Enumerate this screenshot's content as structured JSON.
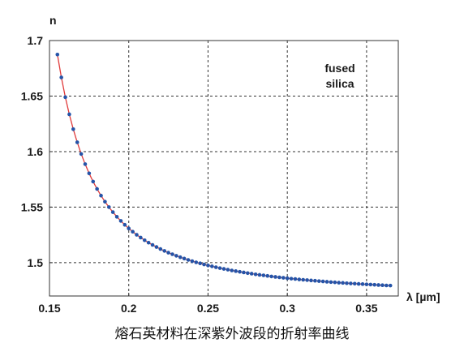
{
  "caption": "熔石英材料在深紫外波段的折射率曲线",
  "colors": {
    "curve": "#e03a3a",
    "points": "#2554a8",
    "grid": "#333333",
    "frame": "#333333"
  },
  "chart_data": {
    "type": "line",
    "title": "",
    "xlabel": "λ [µm]",
    "ylabel": "n",
    "xlim": [
      0.15,
      0.37
    ],
    "ylim": [
      1.47,
      1.7
    ],
    "xticks": [
      0.15,
      0.2,
      0.25,
      0.3,
      0.35
    ],
    "xtick_labels": [
      "0.15",
      "0.2",
      "0.25",
      "0.3",
      "0.35"
    ],
    "yticks": [
      1.5,
      1.55,
      1.6,
      1.65,
      1.7
    ],
    "ytick_labels": [
      "1.5",
      "1.55",
      "1.6",
      "1.65",
      "1.7"
    ],
    "grid": true,
    "annotation": [
      "fused",
      "silica"
    ],
    "series": [
      {
        "x": [
          0.155,
          0.1575,
          0.16,
          0.1625,
          0.165,
          0.1675,
          0.17,
          0.1725,
          0.175,
          0.1775,
          0.18,
          0.1825,
          0.185,
          0.1875,
          0.19,
          0.1925,
          0.195,
          0.1975,
          0.2,
          0.2025,
          0.205,
          0.2075,
          0.21,
          0.2125,
          0.215,
          0.2175,
          0.22,
          0.2225,
          0.225,
          0.2275,
          0.23,
          0.2325,
          0.235,
          0.2375,
          0.24,
          0.2425,
          0.245,
          0.2475,
          0.25,
          0.2525,
          0.255,
          0.2575,
          0.26,
          0.2625,
          0.265,
          0.2675,
          0.27,
          0.2725,
          0.275,
          0.2775,
          0.28,
          0.2825,
          0.285,
          0.2875,
          0.29,
          0.2925,
          0.295,
          0.2975,
          0.3,
          0.3025,
          0.305,
          0.3075,
          0.31,
          0.3125,
          0.315,
          0.3175,
          0.32,
          0.3225,
          0.325,
          0.3275,
          0.33,
          0.3325,
          0.335,
          0.3375,
          0.34,
          0.3425,
          0.345,
          0.3475,
          0.35,
          0.3525,
          0.355,
          0.3575,
          0.36,
          0.3625,
          0.365
        ],
        "y": [
          1.6874,
          1.6668,
          1.649,
          1.6336,
          1.6202,
          1.6084,
          1.5979,
          1.5887,
          1.5804,
          1.573,
          1.5664,
          1.5604,
          1.5549,
          1.55,
          1.5455,
          1.5413,
          1.5376,
          1.5341,
          1.5308,
          1.5279,
          1.5251,
          1.5226,
          1.5202,
          1.518,
          1.516,
          1.5141,
          1.5123,
          1.5106,
          1.509,
          1.5076,
          1.5062,
          1.5049,
          1.5037,
          1.5025,
          1.5014,
          1.5003,
          1.4994,
          1.4984,
          1.4975,
          1.4967,
          1.4959,
          1.4951,
          1.4944,
          1.4937,
          1.493,
          1.4924,
          1.4918,
          1.4912,
          1.4906,
          1.4901,
          1.4895,
          1.489,
          1.4886,
          1.4881,
          1.4876,
          1.4872,
          1.4868,
          1.4864,
          1.486,
          1.4856,
          1.4853,
          1.4849,
          1.4846,
          1.4843,
          1.484,
          1.4837,
          1.4834,
          1.4831,
          1.4828,
          1.4825,
          1.4823,
          1.482,
          1.4818,
          1.4815,
          1.4813,
          1.4811,
          1.4809,
          1.4807,
          1.4805,
          1.4803,
          1.4801,
          1.4799,
          1.4797,
          1.4795,
          1.4794
        ]
      }
    ]
  }
}
